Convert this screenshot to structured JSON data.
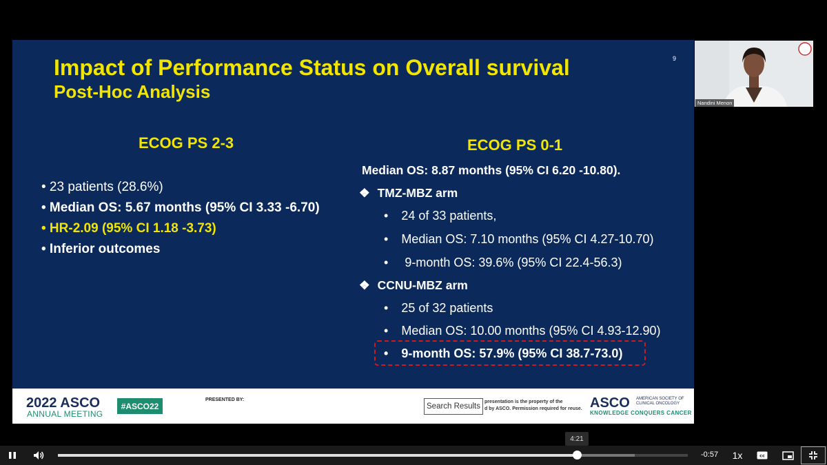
{
  "slide": {
    "title": "Impact of Performance Status on Overall survival",
    "subtitle": "Post-Hoc Analysis",
    "number": "9",
    "left": {
      "heading": "ECOG PS 2-3",
      "bullets": [
        "• 23 patients (28.6%)",
        "•  Median OS: 5.67 months (95% CI 3.33 -6.70)",
        "•  HR-2.09 (95% CI 1.18 -3.73)",
        "•  Inferior outcomes"
      ]
    },
    "right": {
      "heading": "ECOG PS 0-1",
      "median": "Median OS: 8.87 months (95% CI 6.20 -10.80).",
      "arms": [
        {
          "marker": "❖",
          "name": "TMZ-MBZ arm",
          "items": [
            "24 of 33 patients,",
            "Median OS: 7.10 months (95% CI 4.27-10.70)",
            " 9-month OS: 39.6% (95% CI 22.4-56.3)"
          ]
        },
        {
          "marker": "❖",
          "name": "CCNU-MBZ arm",
          "items": [
            "25 of 32 patients",
            "Median OS: 10.00 months (95% CI 4.93-12.90)",
            "9-month OS: 57.9% (95% CI 38.7-73.0)"
          ]
        }
      ],
      "bullet_char": "•"
    }
  },
  "footer": {
    "asco_year": "2022 ASCO",
    "asco_sub": "ANNUAL MEETING",
    "hashtag": "#ASCO22",
    "presented_by": "PRESENTED BY:",
    "search_tooltip": "Search Results",
    "note_line1": "presentation is the property of the",
    "note_line2": "d by ASCO. Permission required for reuse.",
    "asco_logo": "ASCO",
    "asco_society": "AMERICAN SOCIETY OF CLINICAL ONCOLOGY",
    "asco_tagline": "KNOWLEDGE CONQUERS CANCER"
  },
  "webcam": {
    "name": "Nandini Menon"
  },
  "player": {
    "tooltip_time": "4:21",
    "remaining": "-0:57",
    "speed": "1x",
    "progress_played": 0.824,
    "progress_buffered": 0.916,
    "icons": {
      "play_pause": "pause-icon",
      "volume": "volume-icon",
      "captions": "captions-icon",
      "pip": "picture-in-picture-icon",
      "fullscreen": "exit-fullscreen-icon"
    }
  }
}
